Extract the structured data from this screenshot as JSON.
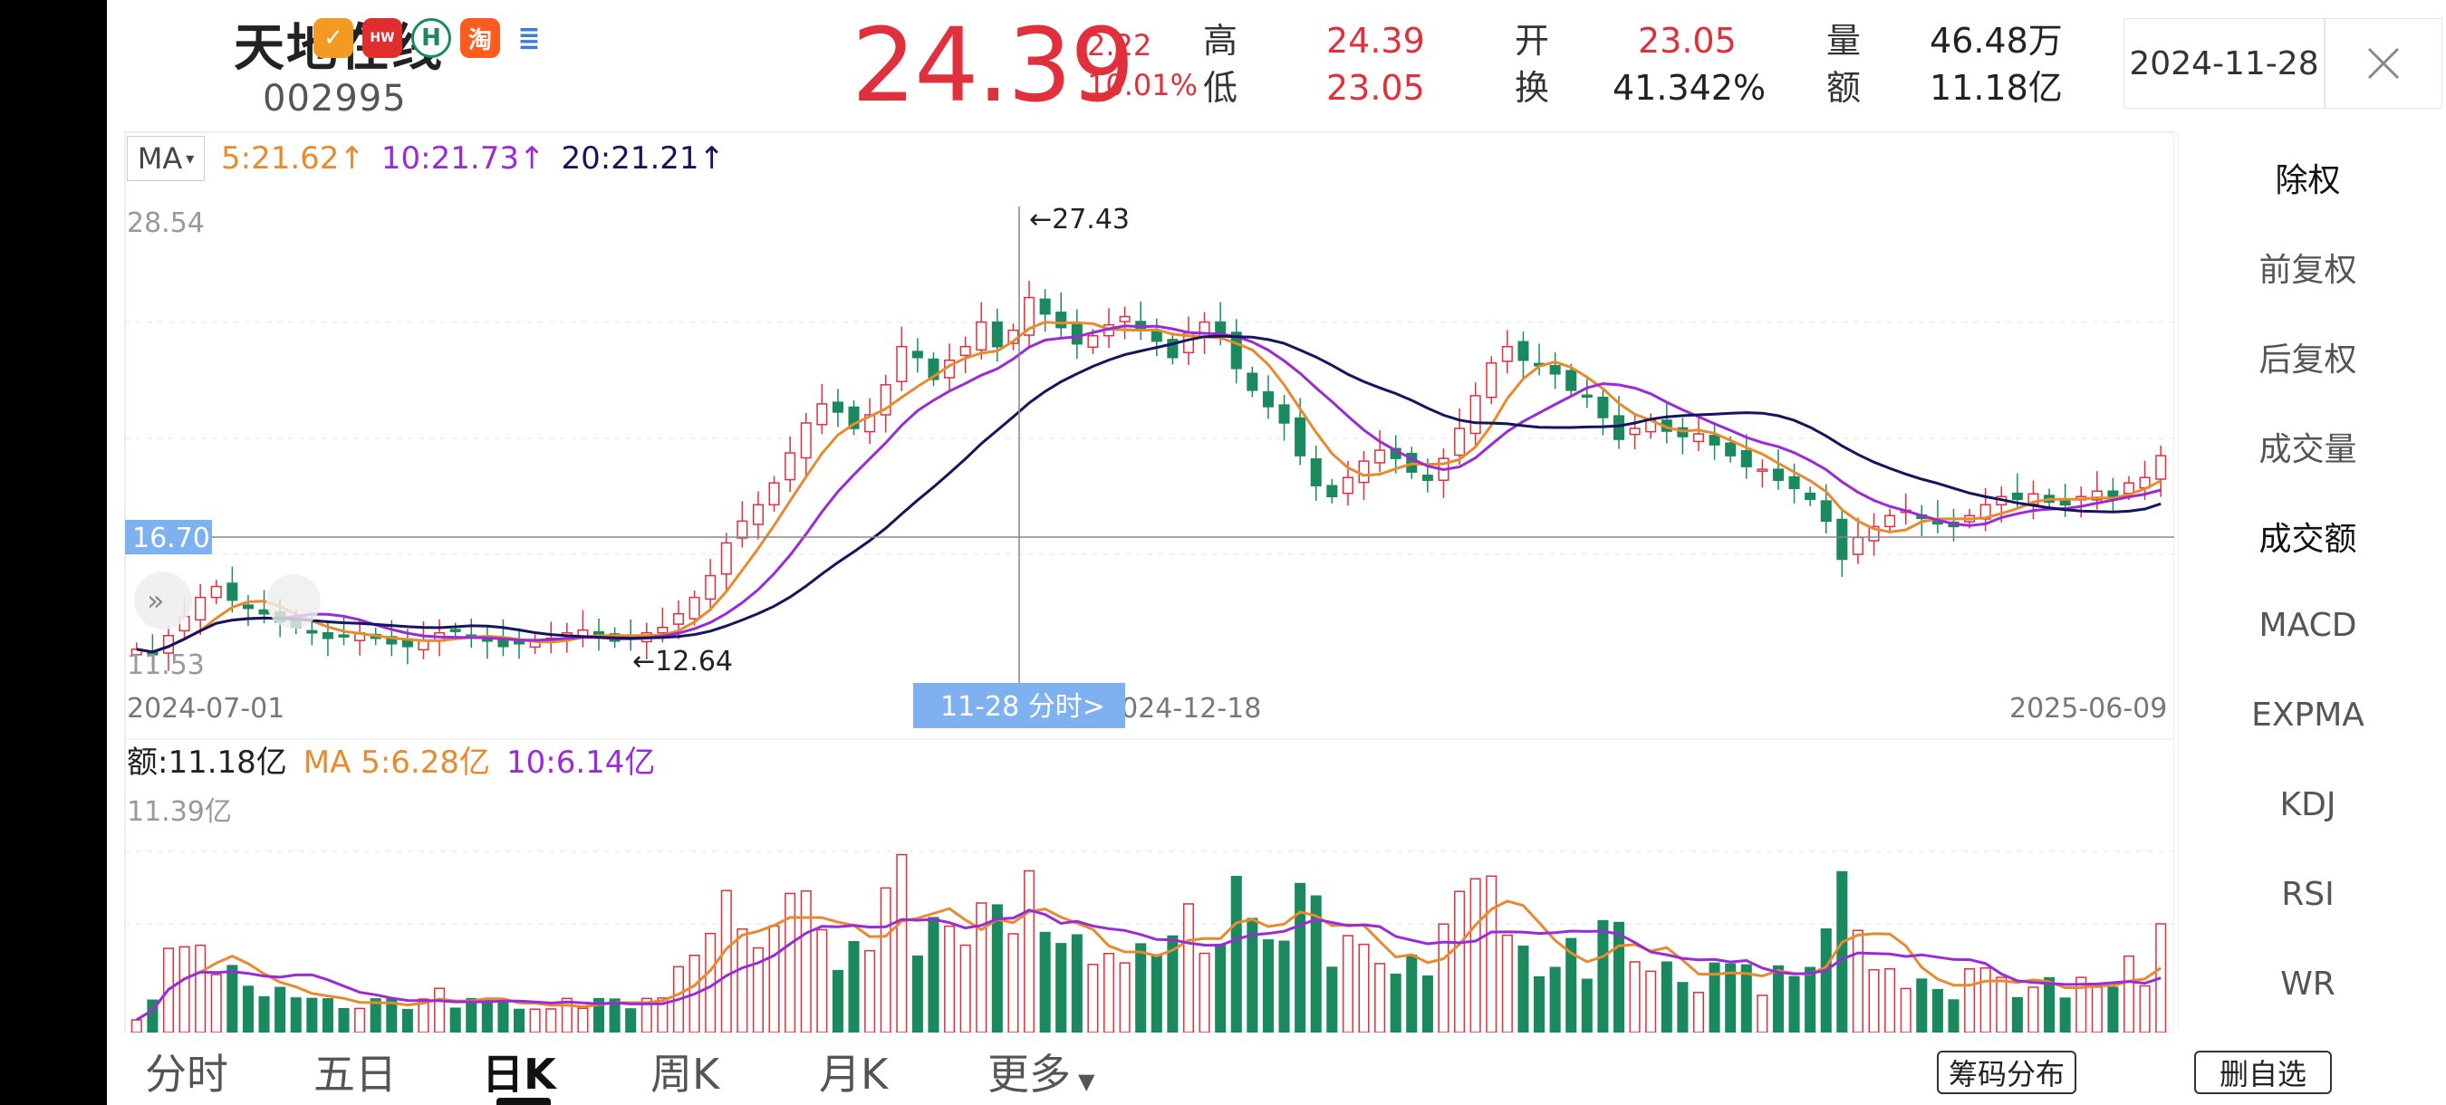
{
  "stock": {
    "name": "天地在线",
    "code": "002995",
    "price": "24.39",
    "change": "2.22",
    "change_pct": "10.01%"
  },
  "quote": {
    "high_label": "高",
    "high": "24.39",
    "low_label": "低",
    "low": "23.05",
    "open_label": "开",
    "open": "23.05",
    "turnover_label": "换",
    "turnover": "41.342%",
    "volume_label": "量",
    "volume": "46.48万",
    "amount_label": "额",
    "amount": "11.18亿"
  },
  "date_picker": "2024-11-28",
  "ma_legend": {
    "selector": "MA",
    "ma5": "5:21.62↑",
    "ma10": "10:21.73↑",
    "ma20": "20:21.21↑"
  },
  "price_axis": {
    "top": "28.54",
    "bottom": "11.53",
    "crosshair_price": "16.70",
    "marker_high": "←27.43",
    "marker_low": "←12.64"
  },
  "date_axis": {
    "start": "2024-07-01",
    "mid": "2024-12-18",
    "end": "2025-06-09",
    "crosshair_label": "11-28 分时>"
  },
  "amount_legend": {
    "amount": "额:11.18亿",
    "ma5": "MA 5:6.28亿",
    "ma10": "10:6.14亿",
    "axis_top": "11.39亿"
  },
  "side_menu": [
    "除权",
    "前复权",
    "后复权",
    "成交量",
    "成交额",
    "MACD",
    "EXPMA",
    "KDJ",
    "RSI",
    "WR"
  ],
  "tabs": [
    "分时",
    "五日",
    "日K",
    "周K",
    "月K",
    "更多"
  ],
  "buttons": {
    "chip": "筹码分布",
    "remove": "删自选"
  },
  "colors": {
    "up": "#e0303b",
    "down": "#1a8a5e",
    "ma5": "#e88a2e",
    "ma10": "#9a2bd6",
    "ma20": "#15155e",
    "crosshair_label_bg": "#7fb0f0"
  },
  "chart_data": {
    "type": "candlestick",
    "title": "",
    "price_range": [
      11.53,
      28.54
    ],
    "amount_range_yi": [
      0,
      11.39
    ],
    "dates": {
      "start": "2024-07-01",
      "end": "2025-06-09"
    },
    "series": [
      {
        "name": "MA5",
        "value": 21.62
      },
      {
        "name": "MA10",
        "value": 21.73
      },
      {
        "name": "MA20",
        "value": 21.21
      }
    ],
    "closes": [
      12.3,
      12.1,
      12.8,
      13.5,
      14.2,
      14.6,
      14.1,
      13.8,
      13.6,
      13.3,
      13.1,
      12.9,
      12.7,
      12.8,
      12.9,
      12.7,
      12.5,
      12.4,
      12.6,
      12.9,
      13.0,
      12.8,
      12.6,
      12.4,
      12.5,
      12.6,
      12.7,
      12.9,
      13.0,
      12.8,
      12.6,
      12.7,
      12.9,
      13.1,
      13.6,
      14.2,
      15.0,
      16.2,
      17.0,
      17.6,
      18.4,
      19.5,
      20.6,
      21.3,
      21.0,
      20.4,
      20.9,
      22.0,
      23.4,
      23.0,
      22.2,
      22.9,
      23.4,
      24.3,
      23.4,
      24.0,
      25.2,
      24.6,
      24.1,
      23.5,
      23.8,
      24.2,
      24.5,
      24.0,
      23.6,
      23.0,
      23.9,
      24.3,
      23.8,
      22.6,
      21.8,
      21.2,
      20.6,
      19.4,
      18.3,
      17.9,
      18.6,
      19.2,
      19.6,
      19.3,
      18.8,
      18.5,
      19.3,
      20.4,
      21.6,
      22.8,
      23.4,
      22.9,
      22.7,
      22.4,
      21.8,
      21.6,
      20.8,
      20.0,
      20.4,
      20.7,
      20.3,
      20.1,
      20.2,
      19.8,
      19.4,
      19.0,
      18.9,
      18.5,
      18.2,
      17.8,
      17.0,
      15.6,
      16.4,
      16.8,
      17.2,
      17.4,
      17.1,
      16.9,
      16.8,
      17.2,
      17.6,
      17.9,
      17.8,
      18.0,
      17.7,
      17.6,
      17.9,
      18.1,
      17.9,
      18.4,
      18.6,
      19.4
    ]
  }
}
